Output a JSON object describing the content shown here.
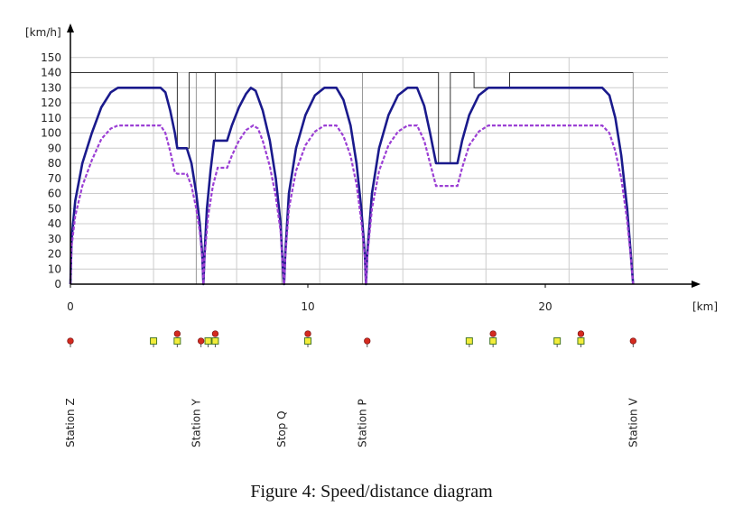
{
  "caption": "Figure 4: Speed/distance diagram",
  "chart_data": {
    "type": "line",
    "title": "",
    "ylabel": "[km/h]",
    "xlabel": "[km]",
    "xlim": [
      0,
      23.8
    ],
    "ylim": [
      0,
      150
    ],
    "grid": true,
    "y_ticks": [
      0,
      10,
      20,
      30,
      40,
      50,
      60,
      70,
      80,
      90,
      100,
      110,
      120,
      130,
      140,
      150
    ],
    "x_ticks": [
      0,
      10,
      20
    ],
    "colors": {
      "limit": "#333333",
      "speed": "#1a1a8c",
      "speed_reduced": "#9b3fd4",
      "grid": "#cccccc"
    },
    "series": [
      {
        "key": "limit",
        "style": "thin",
        "points": [
          [
            0,
            140
          ],
          [
            4.5,
            140
          ],
          [
            4.5,
            90
          ],
          [
            5.0,
            90
          ],
          [
            5.0,
            140
          ],
          [
            6.1,
            140
          ],
          [
            6.1,
            95
          ],
          [
            6.1,
            140
          ],
          [
            15.5,
            140
          ],
          [
            15.5,
            80
          ],
          [
            16.0,
            80
          ],
          [
            16.0,
            140
          ],
          [
            17.0,
            140
          ],
          [
            17.0,
            130
          ],
          [
            18.5,
            130
          ],
          [
            18.5,
            140
          ],
          [
            23.7,
            140
          ]
        ]
      },
      {
        "key": "speed",
        "style": "solid",
        "points": [
          [
            0,
            0
          ],
          [
            0.05,
            30
          ],
          [
            0.2,
            55
          ],
          [
            0.5,
            80
          ],
          [
            0.9,
            100
          ],
          [
            1.3,
            117
          ],
          [
            1.7,
            127
          ],
          [
            2.0,
            130
          ],
          [
            3.8,
            130
          ],
          [
            4.0,
            127
          ],
          [
            4.2,
            115
          ],
          [
            4.4,
            100
          ],
          [
            4.5,
            90
          ],
          [
            4.9,
            90
          ],
          [
            5.1,
            80
          ],
          [
            5.3,
            60
          ],
          [
            5.45,
            40
          ],
          [
            5.55,
            20
          ],
          [
            5.6,
            0
          ],
          [
            5.65,
            20
          ],
          [
            5.75,
            50
          ],
          [
            5.9,
            75
          ],
          [
            6.05,
            95
          ],
          [
            6.6,
            95
          ],
          [
            6.8,
            105
          ],
          [
            7.1,
            117
          ],
          [
            7.4,
            126
          ],
          [
            7.6,
            130
          ],
          [
            7.8,
            128
          ],
          [
            8.1,
            115
          ],
          [
            8.4,
            95
          ],
          [
            8.65,
            70
          ],
          [
            8.85,
            40
          ],
          [
            8.95,
            10
          ],
          [
            9.0,
            0
          ],
          [
            9.05,
            20
          ],
          [
            9.2,
            60
          ],
          [
            9.5,
            90
          ],
          [
            9.9,
            112
          ],
          [
            10.3,
            125
          ],
          [
            10.7,
            130
          ],
          [
            11.2,
            130
          ],
          [
            11.5,
            122
          ],
          [
            11.8,
            105
          ],
          [
            12.05,
            80
          ],
          [
            12.25,
            50
          ],
          [
            12.4,
            20
          ],
          [
            12.45,
            0
          ],
          [
            12.5,
            20
          ],
          [
            12.7,
            60
          ],
          [
            13.0,
            90
          ],
          [
            13.4,
            112
          ],
          [
            13.8,
            125
          ],
          [
            14.2,
            130
          ],
          [
            14.6,
            130
          ],
          [
            14.9,
            118
          ],
          [
            15.15,
            100
          ],
          [
            15.4,
            80
          ],
          [
            16.3,
            80
          ],
          [
            16.5,
            95
          ],
          [
            16.8,
            112
          ],
          [
            17.2,
            125
          ],
          [
            17.6,
            130
          ],
          [
            22.4,
            130
          ],
          [
            22.7,
            125
          ],
          [
            22.95,
            110
          ],
          [
            23.2,
            85
          ],
          [
            23.45,
            50
          ],
          [
            23.6,
            20
          ],
          [
            23.7,
            0
          ]
        ]
      },
      {
        "key": "speed_reduced",
        "style": "dashed",
        "points": [
          [
            0,
            0
          ],
          [
            0.05,
            25
          ],
          [
            0.2,
            45
          ],
          [
            0.5,
            65
          ],
          [
            0.9,
            82
          ],
          [
            1.3,
            96
          ],
          [
            1.7,
            103
          ],
          [
            2.0,
            105
          ],
          [
            3.8,
            105
          ],
          [
            4.0,
            100
          ],
          [
            4.2,
            88
          ],
          [
            4.4,
            74
          ],
          [
            4.5,
            73
          ],
          [
            4.9,
            73
          ],
          [
            5.1,
            65
          ],
          [
            5.3,
            50
          ],
          [
            5.45,
            35
          ],
          [
            5.55,
            18
          ],
          [
            5.6,
            0
          ],
          [
            5.65,
            18
          ],
          [
            5.8,
            45
          ],
          [
            6.0,
            65
          ],
          [
            6.2,
            77
          ],
          [
            6.6,
            77
          ],
          [
            6.8,
            85
          ],
          [
            7.1,
            95
          ],
          [
            7.4,
            102
          ],
          [
            7.7,
            105
          ],
          [
            7.9,
            103
          ],
          [
            8.1,
            95
          ],
          [
            8.4,
            78
          ],
          [
            8.65,
            58
          ],
          [
            8.85,
            35
          ],
          [
            8.95,
            10
          ],
          [
            9.0,
            0
          ],
          [
            9.05,
            18
          ],
          [
            9.2,
            50
          ],
          [
            9.5,
            75
          ],
          [
            9.9,
            92
          ],
          [
            10.3,
            101
          ],
          [
            10.7,
            105
          ],
          [
            11.2,
            105
          ],
          [
            11.5,
            98
          ],
          [
            11.8,
            85
          ],
          [
            12.05,
            66
          ],
          [
            12.25,
            42
          ],
          [
            12.4,
            18
          ],
          [
            12.45,
            0
          ],
          [
            12.5,
            18
          ],
          [
            12.7,
            50
          ],
          [
            13.0,
            75
          ],
          [
            13.4,
            92
          ],
          [
            13.8,
            101
          ],
          [
            14.2,
            105
          ],
          [
            14.6,
            105
          ],
          [
            14.9,
            95
          ],
          [
            15.15,
            80
          ],
          [
            15.4,
            65
          ],
          [
            16.3,
            65
          ],
          [
            16.5,
            77
          ],
          [
            16.8,
            92
          ],
          [
            17.2,
            101
          ],
          [
            17.6,
            105
          ],
          [
            22.4,
            105
          ],
          [
            22.7,
            100
          ],
          [
            22.95,
            88
          ],
          [
            23.2,
            70
          ],
          [
            23.45,
            42
          ],
          [
            23.6,
            18
          ],
          [
            23.7,
            0
          ]
        ]
      }
    ],
    "station_lines": [
      5.3,
      8.9,
      12.3,
      23.7
    ],
    "signals": [
      {
        "km": 0.0,
        "type": "red"
      },
      {
        "km": 3.5,
        "type": "yellow"
      },
      {
        "km": 4.5,
        "type": "yellow-red"
      },
      {
        "km": 5.5,
        "type": "red"
      },
      {
        "km": 5.8,
        "type": "yellow"
      },
      {
        "km": 6.1,
        "type": "yellow-red"
      },
      {
        "km": 10.0,
        "type": "yellow-red"
      },
      {
        "km": 12.5,
        "type": "red"
      },
      {
        "km": 16.8,
        "type": "yellow"
      },
      {
        "km": 17.8,
        "type": "yellow-red"
      },
      {
        "km": 20.5,
        "type": "yellow"
      },
      {
        "km": 21.5,
        "type": "yellow-red"
      },
      {
        "km": 23.7,
        "type": "red"
      }
    ],
    "stations": [
      {
        "label": "Station Z",
        "km": 0.0
      },
      {
        "label": "Station Y",
        "km": 5.3
      },
      {
        "label": "Stop Q",
        "km": 8.9
      },
      {
        "label": "Station P",
        "km": 12.3
      },
      {
        "label": "Station V",
        "km": 23.7
      }
    ]
  }
}
